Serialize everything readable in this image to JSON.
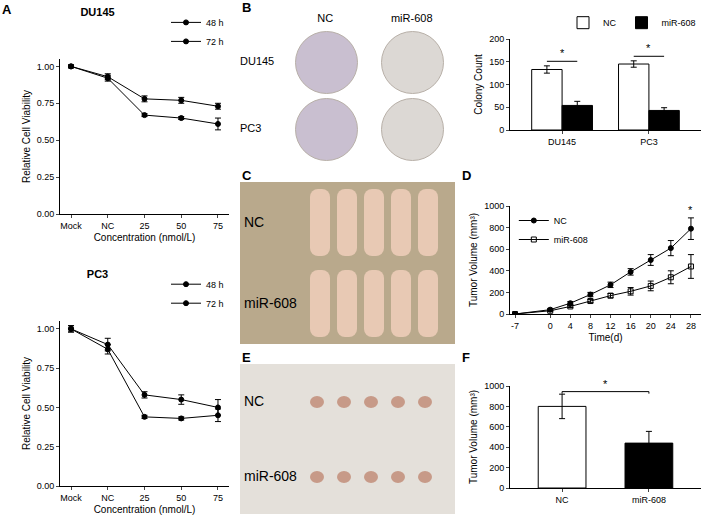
{
  "panel_labels": [
    "A",
    "B",
    "C",
    "D",
    "E",
    "F"
  ],
  "photos": [
    {
      "columns": [
        "NC",
        "miR-608"
      ],
      "rows": [
        "DU145",
        "PC3"
      ]
    },
    {
      "rows": [
        "NC",
        "miR-608"
      ]
    },
    {
      "rows": [
        "NC",
        "miR-608"
      ]
    }
  ],
  "chart_data": [
    {
      "type": "line",
      "title": "DU145",
      "x_label": "Concentration (nmol/L)",
      "y_label": "Relative Cell Viability",
      "categories": [
        "Mock",
        "NC",
        "25",
        "50",
        "75"
      ],
      "series": [
        {
          "name": "48 h",
          "color": "#000000",
          "marker": "circle",
          "values": [
            1.0,
            0.93,
            0.78,
            0.77,
            0.73
          ],
          "errors": [
            0.01,
            0.02,
            0.02,
            0.02,
            0.02
          ]
        },
        {
          "name": "72 h",
          "color": "#000000",
          "marker": "circle",
          "values": [
            1.0,
            0.92,
            0.67,
            0.65,
            0.61
          ],
          "errors": [
            0.01,
            0.02,
            0.01,
            0.01,
            0.04
          ]
        }
      ],
      "ylim": [
        0,
        1.05
      ],
      "yticks": [
        {
          "value": 0,
          "label": "0.00"
        },
        {
          "value": 0.25,
          "label": "0.25"
        },
        {
          "value": 0.5,
          "label": "0.50"
        },
        {
          "value": 0.75,
          "label": "0.75"
        },
        {
          "value": 1,
          "label": "1.00"
        }
      ],
      "legend": "upper right",
      "grid": false
    },
    {
      "type": "line",
      "title": "PC3",
      "x_label": "Concentration (nmol/L)",
      "y_label": "Relative Cell Viability",
      "categories": [
        "Mock",
        "NC",
        "25",
        "50",
        "75"
      ],
      "series": [
        {
          "name": "48 h",
          "color": "#000000",
          "marker": "circle",
          "values": [
            1.0,
            0.9,
            0.58,
            0.55,
            0.5
          ],
          "errors": [
            0.02,
            0.04,
            0.02,
            0.03,
            0.05
          ]
        },
        {
          "name": "72 h",
          "color": "#000000",
          "marker": "circle",
          "values": [
            1.0,
            0.87,
            0.44,
            0.43,
            0.45
          ],
          "errors": [
            0.02,
            0.03,
            0.01,
            0.01,
            0.04
          ]
        }
      ],
      "ylim": [
        0,
        1.05
      ],
      "yticks": [
        {
          "value": 0,
          "label": "0.00"
        },
        {
          "value": 0.25,
          "label": "0.25"
        },
        {
          "value": 0.5,
          "label": "0.50"
        },
        {
          "value": 0.75,
          "label": "0.75"
        },
        {
          "value": 1,
          "label": "1.00"
        }
      ],
      "legend": "upper right",
      "grid": false
    },
    {
      "type": "bar",
      "y_label": "Colony Count",
      "categories": [
        "DU145",
        "PC3"
      ],
      "series": [
        {
          "name": "NC",
          "color": "#ffffff",
          "values": [
            133,
            145
          ],
          "errors": [
            8,
            7
          ]
        },
        {
          "name": "miR-608",
          "color": "#000000",
          "values": [
            54,
            43
          ],
          "errors": [
            9,
            6
          ]
        }
      ],
      "ylim": [
        0,
        200
      ],
      "yticks": [
        0,
        50,
        100,
        150,
        200
      ],
      "annotations": [
        {
          "text": "*",
          "category": "DU145"
        },
        {
          "text": "*",
          "category": "PC3"
        }
      ],
      "legend": "upper right",
      "grid": false
    },
    {
      "type": "line",
      "x_label": "Time(d)",
      "y_label": "Tumor Volume (mm³)",
      "x": [
        -7,
        0,
        4,
        8,
        12,
        16,
        20,
        24,
        28
      ],
      "series": [
        {
          "name": "NC",
          "color": "#000000",
          "marker": "circle",
          "values": [
            0,
            40,
            100,
            180,
            270,
            390,
            500,
            610,
            790
          ],
          "errors": [
            0,
            5,
            15,
            20,
            25,
            30,
            50,
            70,
            100
          ]
        },
        {
          "name": "miR-608",
          "color": "#000000",
          "marker": "square-open",
          "values": [
            0,
            30,
            70,
            120,
            170,
            210,
            260,
            340,
            440
          ],
          "errors": [
            0,
            5,
            10,
            15,
            20,
            35,
            45,
            60,
            110
          ]
        }
      ],
      "xlim": [
        -8,
        30
      ],
      "xticks": [
        -7,
        0,
        4,
        8,
        12,
        16,
        20,
        24,
        28
      ],
      "ylim": [
        0,
        1000
      ],
      "yticks": [
        0,
        200,
        400,
        600,
        800,
        1000
      ],
      "annotations": [
        {
          "text": "*",
          "x": 28
        }
      ],
      "legend": "upper left",
      "grid": false
    },
    {
      "type": "bar",
      "y_label": "Tumor Volume (mm³)",
      "categories": [
        "NC",
        "miR-608"
      ],
      "values": [
        800,
        440
      ],
      "errors": [
        120,
        115
      ],
      "colors": [
        "#ffffff",
        "#000000"
      ],
      "ylim": [
        0,
        1000
      ],
      "yticks": [
        0,
        200,
        400,
        600,
        800,
        1000
      ],
      "annotations": [
        {
          "text": "*",
          "between": [
            "NC",
            "miR-608"
          ]
        }
      ],
      "grid": false
    }
  ]
}
